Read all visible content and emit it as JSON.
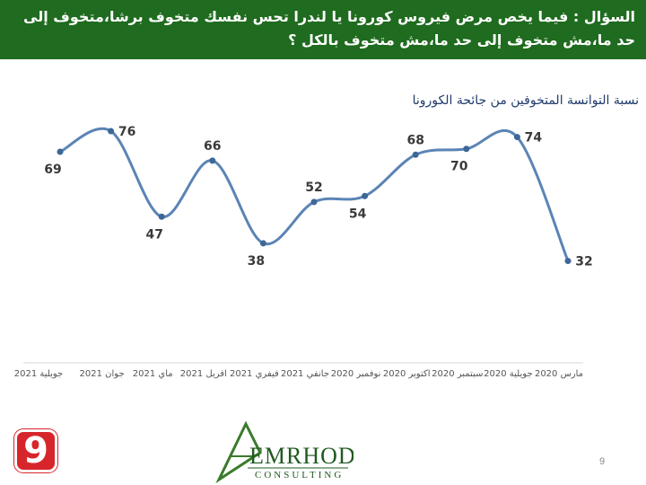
{
  "header": {
    "question": "السؤال : فيما يخص مرض فيروس كورونا يا لندرا تحس نفسك متخوف برشا،متخوف إلى حد ما،مش متخوف إلى حد ما،مش متخوف بالكل ؟"
  },
  "page_number": "9",
  "logos": {
    "tv": "9",
    "company": "EMRHOD",
    "company_sub": "CONSULTING"
  },
  "colors": {
    "header_bg": "#1f6b1f",
    "line": "#5b84b5",
    "point": "#3d6797",
    "label": "#3a3a3a"
  },
  "chart_data": {
    "type": "line",
    "title": "نسبة التوانسة المتخوفين من جائحة الكورونا",
    "categories": [
      "جويلية 2021",
      "جوان 2021",
      "ماي 2021",
      "افريل 2021",
      "فيفري 2021",
      "جانفي 2021",
      "نوفمبر 2020",
      "اكتوبر 2020",
      "سبتمبر 2020",
      "جويلية 2020",
      "مارس 2020"
    ],
    "values": [
      69,
      76,
      47,
      66,
      38,
      52,
      54,
      68,
      70,
      74,
      32
    ],
    "xlabel": "",
    "ylabel": "",
    "ylim": [
      20,
      90
    ],
    "grid": false,
    "legend": "none"
  }
}
